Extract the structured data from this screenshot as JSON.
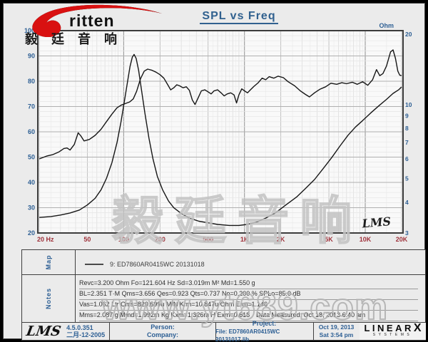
{
  "header": {
    "title": "SPL vs Freq",
    "logo": {
      "brand": "ritten",
      "brand_cn": "毅 廷 音 响"
    }
  },
  "watermarks": {
    "plot_cn": "毅廷音响",
    "site": "www.yt689.com"
  },
  "chart_data": {
    "type": "line",
    "title": "SPL vs Freq",
    "grid": true,
    "x_axis": {
      "scale": "log",
      "min": 20,
      "max": 20000,
      "ticks": [
        {
          "f": 20,
          "label": "20 Hz"
        },
        {
          "f": 50,
          "label": "50"
        },
        {
          "f": 100,
          "label": "100"
        },
        {
          "f": 200,
          "label": "200"
        },
        {
          "f": 500,
          "label": "500"
        },
        {
          "f": 1000,
          "label": "1K"
        },
        {
          "f": 2000,
          "label": "2K"
        },
        {
          "f": 5000,
          "label": "5K"
        },
        {
          "f": 10000,
          "label": "10K"
        },
        {
          "f": 20000,
          "label": "20K"
        }
      ]
    },
    "y_left": {
      "label": "dB-SPL",
      "min": 20,
      "max": 100,
      "ticks": [
        100,
        90,
        80,
        70,
        60,
        50,
        40,
        30,
        20
      ]
    },
    "y_right": {
      "label": "Ohm",
      "scale": "log",
      "min": 3,
      "max": 20,
      "ticks": [
        20,
        10,
        9,
        8,
        7,
        6,
        5,
        4,
        3
      ]
    },
    "watermark_lms": "LMS",
    "series": [
      {
        "name": "SPL",
        "axis": "left",
        "points": [
          [
            20,
            49.3
          ],
          [
            23,
            50.4
          ],
          [
            26,
            51
          ],
          [
            29,
            52
          ],
          [
            32,
            53.4
          ],
          [
            34,
            53.6
          ],
          [
            36,
            52.8
          ],
          [
            39,
            55
          ],
          [
            42,
            59.6
          ],
          [
            44,
            58.5
          ],
          [
            47,
            56.4
          ],
          [
            52,
            57
          ],
          [
            58,
            58.6
          ],
          [
            65,
            61
          ],
          [
            72,
            64
          ],
          [
            80,
            67
          ],
          [
            88,
            69.5
          ],
          [
            95,
            70.5
          ],
          [
            105,
            71.3
          ],
          [
            112,
            71.8
          ],
          [
            120,
            73
          ],
          [
            128,
            76
          ],
          [
            138,
            81
          ],
          [
            148,
            84
          ],
          [
            158,
            84.8
          ],
          [
            170,
            84.4
          ],
          [
            185,
            83.6
          ],
          [
            200,
            82.6
          ],
          [
            215,
            81.2
          ],
          [
            232,
            78.6
          ],
          [
            245,
            76.6
          ],
          [
            260,
            77.4
          ],
          [
            275,
            78.6
          ],
          [
            290,
            78.2
          ],
          [
            310,
            77.4
          ],
          [
            330,
            77.8
          ],
          [
            350,
            76.4
          ],
          [
            370,
            72.6
          ],
          [
            390,
            70.8
          ],
          [
            410,
            73
          ],
          [
            440,
            76.2
          ],
          [
            470,
            76.6
          ],
          [
            500,
            75.8
          ],
          [
            530,
            75
          ],
          [
            560,
            76.2
          ],
          [
            600,
            76.6
          ],
          [
            640,
            75.4
          ],
          [
            680,
            74.2
          ],
          [
            720,
            75
          ],
          [
            770,
            75.4
          ],
          [
            820,
            74.6
          ],
          [
            860,
            71.4
          ],
          [
            900,
            74.6
          ],
          [
            950,
            77
          ],
          [
            1000,
            76.2
          ],
          [
            1060,
            75.4
          ],
          [
            1120,
            76.6
          ],
          [
            1200,
            78
          ],
          [
            1300,
            79.4
          ],
          [
            1400,
            81.2
          ],
          [
            1500,
            80.6
          ],
          [
            1600,
            81.8
          ],
          [
            1750,
            81.2
          ],
          [
            1900,
            82
          ],
          [
            2100,
            81.4
          ],
          [
            2300,
            79.8
          ],
          [
            2600,
            78.2
          ],
          [
            2900,
            76.2
          ],
          [
            3200,
            74.8
          ],
          [
            3450,
            73.8
          ],
          [
            3800,
            75.4
          ],
          [
            4200,
            76.8
          ],
          [
            4700,
            77.8
          ],
          [
            5200,
            79.2
          ],
          [
            5800,
            78.8
          ],
          [
            6400,
            79.4
          ],
          [
            7000,
            79
          ],
          [
            7800,
            79.6
          ],
          [
            8600,
            78.8
          ],
          [
            9500,
            79.8
          ],
          [
            10500,
            78.4
          ],
          [
            11500,
            80.6
          ],
          [
            12400,
            84.6
          ],
          [
            13200,
            82.2
          ],
          [
            14000,
            83
          ],
          [
            15000,
            86
          ],
          [
            16200,
            91.6
          ],
          [
            17000,
            92.4
          ],
          [
            17800,
            89
          ],
          [
            18600,
            84
          ],
          [
            19300,
            82.4
          ],
          [
            20000,
            82.2
          ]
        ]
      },
      {
        "name": "Impedance",
        "axis": "right",
        "points": [
          [
            20,
            3.47
          ],
          [
            25,
            3.5
          ],
          [
            30,
            3.55
          ],
          [
            36,
            3.62
          ],
          [
            43,
            3.72
          ],
          [
            50,
            3.9
          ],
          [
            58,
            4.15
          ],
          [
            65,
            4.5
          ],
          [
            72,
            5.0
          ],
          [
            80,
            5.8
          ],
          [
            88,
            7.0
          ],
          [
            95,
            8.5
          ],
          [
            102,
            10.5
          ],
          [
            108,
            12.5
          ],
          [
            113,
            14.3
          ],
          [
            118,
            15.6
          ],
          [
            122,
            16.0
          ],
          [
            127,
            15.4
          ],
          [
            133,
            13.8
          ],
          [
            140,
            11.6
          ],
          [
            150,
            9.2
          ],
          [
            162,
            7.3
          ],
          [
            175,
            6.0
          ],
          [
            190,
            5.1
          ],
          [
            210,
            4.5
          ],
          [
            235,
            4.05
          ],
          [
            260,
            3.8
          ],
          [
            300,
            3.6
          ],
          [
            350,
            3.45
          ],
          [
            420,
            3.35
          ],
          [
            500,
            3.3
          ],
          [
            600,
            3.25
          ],
          [
            750,
            3.22
          ],
          [
            900,
            3.22
          ],
          [
            1050,
            3.25
          ],
          [
            1250,
            3.32
          ],
          [
            1500,
            3.45
          ],
          [
            1800,
            3.62
          ],
          [
            2200,
            3.9
          ],
          [
            2700,
            4.2
          ],
          [
            3200,
            4.55
          ],
          [
            3800,
            4.95
          ],
          [
            4500,
            5.5
          ],
          [
            5300,
            6.1
          ],
          [
            6200,
            6.8
          ],
          [
            7200,
            7.5
          ],
          [
            8300,
            8.1
          ],
          [
            9500,
            8.6
          ],
          [
            11000,
            9.2
          ],
          [
            13000,
            9.9
          ],
          [
            15000,
            10.5
          ],
          [
            17000,
            11.1
          ],
          [
            19000,
            11.5
          ],
          [
            20000,
            11.8
          ]
        ]
      }
    ]
  },
  "map": {
    "label": "Map",
    "legend": "9: ED7860AR0415WC  20131018"
  },
  "notes": {
    "label": "Notes",
    "lines": [
      "Revc=3.200 Ohm  Fo=121.604 Hz  Sd=3.019m M²  Md=1.550 g",
      "BL=2.351 T·M  Qms=3.656  Qes=0.923  Qts=0.737  No=0.200 %  SPLo=85.0 dB",
      "Vas=1.062 Ltr  Cms=820.699u M/N  Krm=10.847u Ohm  Erm=1.146",
      "Mms=2.087 g  Mmd=1.992m Kg  Kxm=1.326m H  Exm=0.618"
    ],
    "measured": "Data Measured:  Oct 18, 2013  6:40 am"
  },
  "footer": {
    "app": "LMS",
    "version": "4.5.0.351",
    "version_date": "二月-12-2005",
    "person_label": "Person:",
    "company_label": "Company:",
    "project_label": "Project:",
    "file": "File: ED7860AR0415WC  20131017.lib",
    "date": "Oct 19, 2013",
    "time": "Sat  3:54 pm",
    "brand": "LINEAR",
    "brand_x": "X",
    "brand_sub": "SYSTEMS"
  }
}
